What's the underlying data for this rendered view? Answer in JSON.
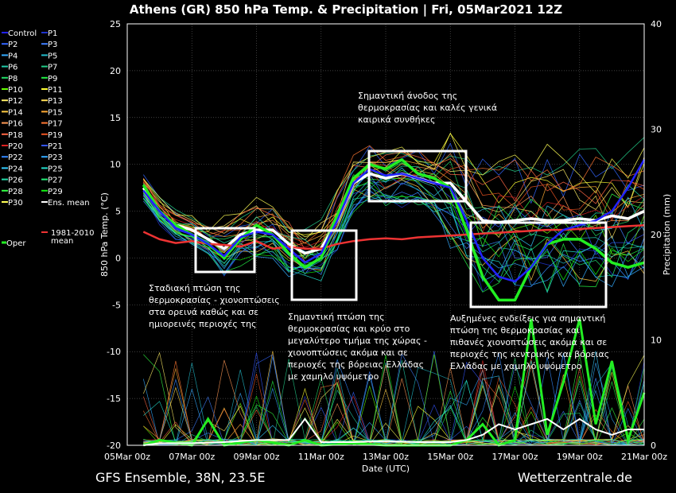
{
  "chart_data": {
    "type": "line",
    "title": "Athens  (GR)  850 hPa Temp. & Precipitation | Fri, 05Mar2021 12Z",
    "ylabel": "850 hPa Temp. (°C)",
    "y2label": "Precipitation (mm)",
    "xlabel": "Date (UTC)",
    "ylim": [
      -20,
      25
    ],
    "y2lim": [
      0,
      40
    ],
    "yticks": [
      "25",
      "20",
      "15",
      "10",
      "5",
      "0",
      "-5",
      "-10",
      "-15",
      "-20"
    ],
    "y2ticks": [
      "40",
      "30",
      "20",
      "10",
      "0"
    ],
    "xlim": [
      0,
      16
    ],
    "xticks": [
      "05Mar 00z",
      "07Mar 00z",
      "09Mar 00z",
      "11Mar 00z",
      "13Mar 00z",
      "15Mar 00z",
      "17Mar 00z",
      "19Mar 00z",
      "21Mar 00z"
    ],
    "grid": true,
    "legend_placement": "left",
    "legend": [
      {
        "name": "Control",
        "color": "#2222ff"
      },
      {
        "name": "P1",
        "color": "#1f33cc"
      },
      {
        "name": "P2",
        "color": "#3366ff"
      },
      {
        "name": "P3",
        "color": "#3f7fff"
      },
      {
        "name": "P4",
        "color": "#33aaff"
      },
      {
        "name": "P5",
        "color": "#22bbcc"
      },
      {
        "name": "P6",
        "color": "#22ccaa"
      },
      {
        "name": "P7",
        "color": "#22cc88"
      },
      {
        "name": "P8",
        "color": "#22dd66"
      },
      {
        "name": "P9",
        "color": "#22ee44"
      },
      {
        "name": "P10",
        "color": "#66ff00"
      },
      {
        "name": "P11",
        "color": "#ffff33"
      },
      {
        "name": "P12",
        "color": "#ffee66"
      },
      {
        "name": "P13",
        "color": "#ffdd55"
      },
      {
        "name": "P14",
        "color": "#ffcc44"
      },
      {
        "name": "P15",
        "color": "#ffaa33"
      },
      {
        "name": "P16",
        "color": "#ff9955"
      },
      {
        "name": "P17",
        "color": "#ff7733"
      },
      {
        "name": "P18",
        "color": "#ff6644"
      },
      {
        "name": "P19",
        "color": "#ee5522"
      },
      {
        "name": "P20",
        "color": "#dd2222"
      },
      {
        "name": "P21",
        "color": "#3355ff"
      },
      {
        "name": "P22",
        "color": "#3388ff"
      },
      {
        "name": "P23",
        "color": "#33aaff"
      },
      {
        "name": "P24",
        "color": "#33ccff"
      },
      {
        "name": "P25",
        "color": "#22ddcc"
      },
      {
        "name": "P26",
        "color": "#22ddaa"
      },
      {
        "name": "P27",
        "color": "#22ee77"
      },
      {
        "name": "P28",
        "color": "#33ff44"
      },
      {
        "name": "P29",
        "color": "#11ee11"
      },
      {
        "name": "P30",
        "color": "#ffff55"
      },
      {
        "name": "Ens. mean",
        "color": "#ffffff"
      },
      {
        "name": "Oper",
        "color": "#22ee22"
      },
      {
        "name": "1981-2010 mean",
        "color": "#ee3333"
      }
    ],
    "series": [
      {
        "name": "Ens. mean",
        "color": "#ffffff",
        "x": [
          0.5,
          1,
          1.5,
          2,
          2.5,
          3,
          3.5,
          4,
          4.5,
          5,
          5.5,
          6,
          6.5,
          7,
          7.5,
          8,
          8.5,
          9,
          9.5,
          10,
          10.5,
          11,
          11.5,
          12,
          12.5,
          13,
          13.5,
          14,
          14.5,
          15,
          15.5,
          16
        ],
        "y": [
          7.5,
          5.0,
          3.5,
          3.0,
          2.0,
          1.0,
          2.5,
          3.0,
          3.0,
          1.5,
          0.5,
          1.0,
          4.0,
          8.0,
          9.0,
          8.5,
          9.0,
          8.5,
          8.0,
          8.0,
          6.0,
          4.0,
          3.8,
          4.0,
          4.2,
          4.0,
          4.0,
          4.2,
          4.0,
          4.5,
          4.2,
          5.0
        ]
      },
      {
        "name": "1981-2010 mean",
        "color": "#ee3333",
        "x": [
          0.5,
          1,
          1.5,
          2,
          2.5,
          3,
          3.5,
          4,
          4.5,
          5,
          5.5,
          6,
          6.5,
          7,
          7.5,
          8,
          8.5,
          9,
          9.5,
          10,
          10.5,
          11,
          11.5,
          12,
          12.5,
          13,
          13.5,
          14,
          14.5,
          15,
          15.5,
          16
        ],
        "y": [
          2.8,
          2.0,
          1.6,
          1.8,
          1.5,
          1.4,
          1.2,
          1.8,
          1.0,
          1.2,
          1.0,
          1.0,
          1.5,
          1.8,
          2.0,
          2.1,
          2.0,
          2.2,
          2.3,
          2.4,
          2.5,
          2.6,
          2.7,
          2.8,
          2.9,
          3.0,
          3.0,
          3.1,
          3.2,
          3.3,
          3.4,
          3.5
        ]
      },
      {
        "name": "Oper",
        "color": "#22ee22",
        "x": [
          0.5,
          1,
          1.5,
          2,
          2.5,
          3,
          3.5,
          4,
          4.5,
          5,
          5.5,
          6,
          6.5,
          7,
          7.5,
          8,
          8.5,
          9,
          9.5,
          10,
          10.5,
          11,
          11.5,
          12,
          12.5,
          13,
          13.5,
          14,
          14.5,
          15,
          15.5,
          16
        ],
        "y": [
          7.8,
          5.0,
          3.5,
          2.5,
          1.5,
          0.0,
          2.0,
          3.5,
          2.5,
          0.5,
          -1.0,
          0.0,
          4.5,
          8.5,
          10.0,
          9.5,
          10.5,
          9.0,
          8.5,
          7.5,
          3.0,
          -2.0,
          -4.5,
          -4.5,
          -1.0,
          1.5,
          2.0,
          2.0,
          1.0,
          -0.5,
          -1.0,
          -0.5
        ]
      },
      {
        "name": "Control",
        "color": "#2222ff",
        "x": [
          0.5,
          1,
          1.5,
          2,
          2.5,
          3,
          3.5,
          4,
          4.5,
          5,
          5.5,
          6,
          6.5,
          7,
          7.5,
          8,
          8.5,
          9,
          9.5,
          10,
          10.5,
          11,
          11.5,
          12,
          12.5,
          13,
          13.5,
          14,
          14.5,
          15,
          15.5,
          16
        ],
        "y": [
          7.2,
          5.0,
          3.2,
          2.5,
          1.5,
          0.2,
          2.2,
          2.8,
          2.5,
          1.0,
          -0.5,
          0.5,
          4.0,
          8.0,
          9.5,
          8.8,
          9.0,
          8.5,
          8.0,
          7.5,
          4.0,
          0.0,
          -2.0,
          -2.5,
          -1.0,
          1.5,
          3.0,
          3.5,
          4.0,
          5.0,
          7.5,
          10.5
        ]
      }
    ],
    "precipitation": [
      {
        "name": "Oper",
        "color": "#22ee22",
        "x": [
          0.5,
          1,
          2,
          2.5,
          3,
          4,
          5,
          5.5,
          6,
          7,
          8,
          9,
          10,
          10.5,
          11,
          11.5,
          12,
          12.5,
          13,
          13.5,
          14,
          14.5,
          15,
          15.5,
          16
        ],
        "y": [
          0,
          0.5,
          0,
          2.5,
          0,
          0.5,
          0,
          0.5,
          0,
          0.2,
          0,
          0,
          0,
          0.5,
          2,
          0,
          0.5,
          12,
          1,
          6,
          12,
          2,
          8,
          0.5,
          5
        ]
      },
      {
        "name": "Ens. mean",
        "color": "#ffffff",
        "x": [
          0.5,
          1,
          2,
          3,
          4,
          5,
          5.5,
          6,
          7,
          8,
          9,
          10,
          10.5,
          11,
          11.5,
          12,
          12.5,
          13,
          13.5,
          14,
          14.5,
          15,
          15.5,
          16
        ],
        "y": [
          0,
          0.2,
          0.2,
          0.3,
          0.5,
          0.5,
          2.5,
          0.3,
          0.3,
          0.4,
          0.3,
          0.3,
          0.5,
          1.0,
          2.0,
          1.5,
          2.0,
          2.5,
          1.5,
          2.5,
          1.5,
          1.0,
          1.5,
          1.5
        ]
      }
    ],
    "annotations": [
      {
        "text": "Σταδιακή πτώση της θερμοκρασίας - χιονοπτώσεις στα ορεινά καθώς και σε ημιορεινές περιοχές της"
      },
      {
        "text": "Σημαντική πτώση της θερμοκρασίας και κρύο στο μεγαλύτερο τμήμα της χώρας - χιονοπτώσεις ακόμα και σε περιοχές της βόρειας Ελλάδας με χαμηλό υψόμετρο"
      },
      {
        "text": "Σημαντική άνοδος της θερμοκρασίας και καλές γενικά καιρικά συνθήκες"
      },
      {
        "text": "Αυξημένες ενδείξεις για σημαντική πτώση της θερμοκρασίας και πιθανές χιονοπτώσεις ακόμα και σε περιοχές της κεντρικής και βόρειας Ελλάδας με χαμηλό υψόμετρο"
      }
    ]
  },
  "footer": {
    "left": "GFS Ensemble, 38N, 23.5E",
    "right": "Wetterzentrale.de"
  }
}
